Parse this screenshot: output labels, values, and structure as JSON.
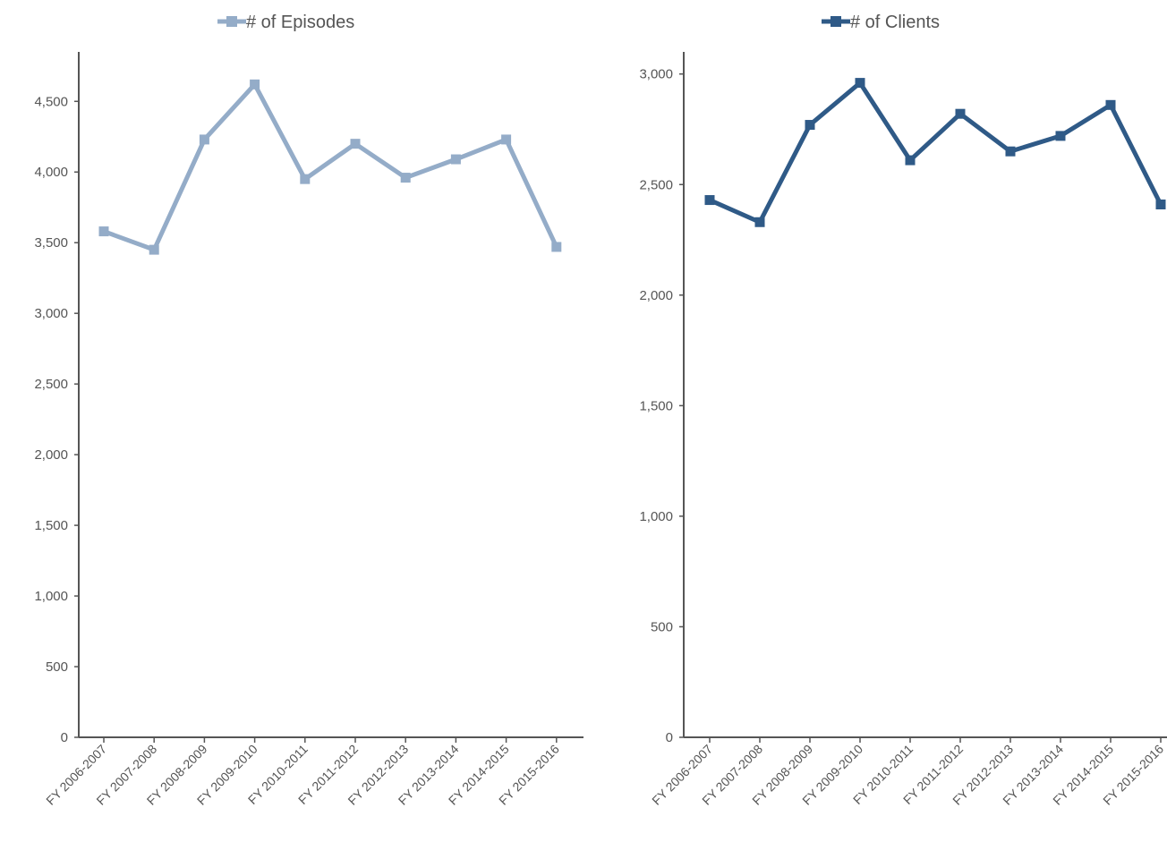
{
  "chart_data": [
    {
      "type": "line",
      "categories": [
        "FY 2006-2007",
        "FY 2007-2008",
        "FY 2008-2009",
        "FY 2009-2010",
        "FY 2010-2011",
        "FY 2011-2012",
        "FY 2012-2013",
        "FY 2013-2014",
        "FY 2014-2015",
        "FY 2015-2016"
      ],
      "series": [
        {
          "name": "# of Episodes",
          "color": "#94acc8",
          "values": [
            3580,
            3450,
            4230,
            4620,
            3950,
            4200,
            3960,
            4090,
            4230,
            3470
          ]
        }
      ],
      "ylim": [
        0,
        4850
      ],
      "yticks": [
        0,
        500,
        1000,
        1500,
        2000,
        2500,
        3000,
        3500,
        4000,
        4500
      ],
      "ytick_labels": [
        "0",
        "500",
        "1,000",
        "1,500",
        "2,000",
        "2,500",
        "3,000",
        "3,500",
        "4,000",
        "4,500"
      ],
      "grid": false,
      "legend": "top-center",
      "title": "",
      "xlabel": "",
      "ylabel": ""
    },
    {
      "type": "line",
      "categories": [
        "FY 2006-2007",
        "FY 2007-2008",
        "FY 2008-2009",
        "FY 2009-2010",
        "FY 2010-2011",
        "FY 2011-2012",
        "FY 2012-2013",
        "FY 2013-2014",
        "FY 2014-2015",
        "FY 2015-2016"
      ],
      "series": [
        {
          "name": "# of Clients",
          "color": "#2f5a87",
          "values": [
            2430,
            2330,
            2770,
            2960,
            2610,
            2820,
            2650,
            2720,
            2860,
            2410
          ]
        }
      ],
      "ylim": [
        0,
        3100
      ],
      "yticks": [
        0,
        500,
        1000,
        1500,
        2000,
        2500,
        3000
      ],
      "ytick_labels": [
        "0",
        "500",
        "1,000",
        "1,500",
        "2,000",
        "2,500",
        "3,000"
      ],
      "grid": false,
      "legend": "top-center",
      "title": "",
      "xlabel": "",
      "ylabel": ""
    }
  ],
  "colors": {
    "axis": "#555555",
    "text": "#555555",
    "background": "#ffffff"
  }
}
